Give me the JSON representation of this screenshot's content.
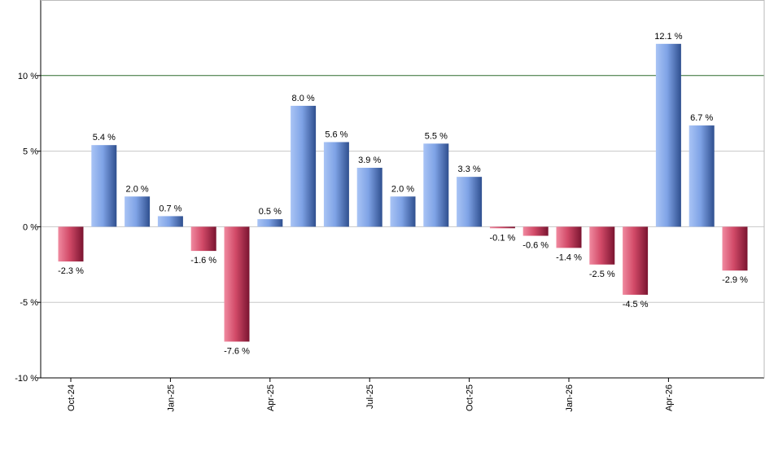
{
  "chart_data": {
    "type": "bar",
    "title": "",
    "xlabel": "",
    "ylabel": "",
    "ylim": [
      -10,
      15
    ],
    "y_ticks": [
      -10,
      -5,
      0,
      5,
      10
    ],
    "y_tick_suffix": " %",
    "grid": true,
    "legend": "none",
    "reference_line": {
      "value": 10,
      "color": "#2e6b2e"
    },
    "x_tick_labels": [
      {
        "label": "Oct-24",
        "index": 0
      },
      {
        "label": "Jan-25",
        "index": 3
      },
      {
        "label": "Apr-25",
        "index": 6
      },
      {
        "label": "Jul-25",
        "index": 9
      },
      {
        "label": "Oct-25",
        "index": 12
      },
      {
        "label": "Jan-26",
        "index": 15
      },
      {
        "label": "Apr-26",
        "index": 18
      }
    ],
    "values": [
      -2.3,
      5.4,
      2.0,
      0.7,
      -1.6,
      -7.6,
      0.5,
      8.0,
      5.6,
      3.9,
      2.0,
      5.5,
      3.3,
      -0.1,
      -0.6,
      -1.4,
      -2.5,
      -4.5,
      12.1,
      6.7,
      -2.9
    ],
    "data_labels": [
      "-2.3 %",
      "5.4 %",
      "2.0 %",
      "0.7 %",
      "-1.6 %",
      "-7.6 %",
      "0.5 %",
      "8.0 %",
      "5.6 %",
      "3.9 %",
      "2.0 %",
      "5.5 %",
      "3.3 %",
      "-0.1 %",
      "-0.6 %",
      "-1.4 %",
      "-2.5 %",
      "-4.5 %",
      "12.1 %",
      "6.7 %",
      "-2.9 %"
    ],
    "colors": {
      "positive": "#6f94e0",
      "negative": "#c63a5a",
      "grid": "#c8c8c8",
      "axis": "#000000"
    }
  }
}
